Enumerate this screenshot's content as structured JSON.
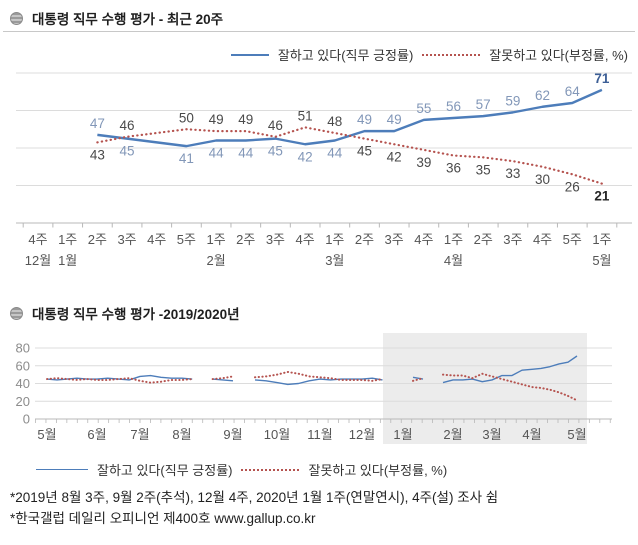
{
  "colors": {
    "positive_line": "#4d7dba",
    "negative_line": "#b5534f",
    "positive_label": "#8297b8",
    "positive_label_final": "#3d5f96",
    "negative_label": "#4a4a4a",
    "negative_label_final": "#262626",
    "grid": "#dcdcdc",
    "axis": "#b8b8b8",
    "tick_label": "#555555",
    "y_label": "#8c8c8c",
    "shade": "#ececec"
  },
  "chart_data": [
    {
      "type": "line",
      "title": "대통령 직무 수행 평가 - 최근 20주",
      "ylim": [
        0,
        80
      ],
      "grid_values": [
        20,
        40,
        60,
        80
      ],
      "x_tick_labels": [
        "4주",
        "1주",
        "2주",
        "3주",
        "4주",
        "5주",
        "1주",
        "2주",
        "3주",
        "4주",
        "1주",
        "2주",
        "3주",
        "4주",
        "1주",
        "2주",
        "3주",
        "4주",
        "5주",
        "1주"
      ],
      "month_labels": [
        {
          "index": 0,
          "label": "12월"
        },
        {
          "index": 1,
          "label": "1월"
        },
        {
          "index": 6,
          "label": "2월"
        },
        {
          "index": 10,
          "label": "3월"
        },
        {
          "index": 14,
          "label": "4월"
        },
        {
          "index": 19,
          "label": "5월"
        }
      ],
      "series": [
        {
          "name": "잘하고 있다(직무 긍정률)",
          "style": "solid",
          "values": [
            null,
            null,
            47,
            45,
            null,
            41,
            44,
            44,
            45,
            42,
            44,
            49,
            49,
            55,
            56,
            57,
            59,
            62,
            64,
            71
          ]
        },
        {
          "name": "잘못하고 있다(부정률, %)",
          "style": "dotted",
          "values": [
            null,
            null,
            43,
            46,
            null,
            50,
            49,
            49,
            46,
            51,
            48,
            45,
            42,
            39,
            36,
            35,
            33,
            30,
            26,
            21
          ]
        }
      ]
    },
    {
      "type": "line",
      "title": "대통령 직무 수행 평가 -2019/2020년",
      "ylim": [
        0,
        80
      ],
      "y_tick_labels": [
        80,
        60,
        40,
        20,
        0
      ],
      "months": [
        {
          "label": "5월",
          "weeks": 5
        },
        {
          "label": "6월",
          "weeks": 4
        },
        {
          "label": "7월",
          "weeks": 4
        },
        {
          "label": "8월",
          "weeks": 5
        },
        {
          "label": "9월",
          "weeks": 4
        },
        {
          "label": "10월",
          "weeks": 4
        },
        {
          "label": "11월",
          "weeks": 4
        },
        {
          "label": "12월",
          "weeks": 4
        },
        {
          "label": "1월",
          "weeks": 5
        },
        {
          "label": "2월",
          "weeks": 4
        },
        {
          "label": "3월",
          "weeks": 4
        },
        {
          "label": "4월",
          "weeks": 5
        },
        {
          "label": "5월",
          "weeks": 1
        }
      ],
      "highlighted_months": [
        "1월",
        "2월",
        "3월",
        "4월",
        "5월"
      ],
      "series": [
        {
          "name": "잘하고 있다(직무 긍정률)",
          "style": "solid",
          "values": [
            45,
            44,
            45,
            46,
            45,
            45,
            46,
            45,
            44,
            48,
            49,
            47,
            46,
            46,
            45,
            null,
            45,
            44,
            43,
            null,
            44,
            43,
            41,
            39,
            40,
            43,
            45,
            44,
            45,
            45,
            45,
            46,
            44,
            null,
            null,
            47,
            45,
            null,
            41,
            44,
            44,
            45,
            42,
            44,
            49,
            49,
            55,
            56,
            57,
            59,
            62,
            64,
            71
          ]
        },
        {
          "name": "잘못하고 있다(부정률, %)",
          "style": "dotted",
          "values": [
            45,
            46,
            45,
            44,
            45,
            44,
            44,
            45,
            46,
            43,
            41,
            42,
            44,
            44,
            45,
            null,
            45,
            46,
            48,
            null,
            47,
            48,
            50,
            53,
            51,
            48,
            47,
            46,
            44,
            44,
            44,
            43,
            45,
            null,
            null,
            43,
            46,
            null,
            50,
            49,
            49,
            46,
            51,
            48,
            45,
            42,
            39,
            36,
            35,
            33,
            30,
            26,
            21
          ]
        }
      ]
    }
  ],
  "footnotes": [
    "*2019년 8월 3주, 9월 2주(추석), 12월 4주, 2020년 1월 1주(연말연시), 4주(설) 조사 쉼",
    "*한국갤럽 데일리 오피니언 제400호 www.gallup.co.kr"
  ]
}
